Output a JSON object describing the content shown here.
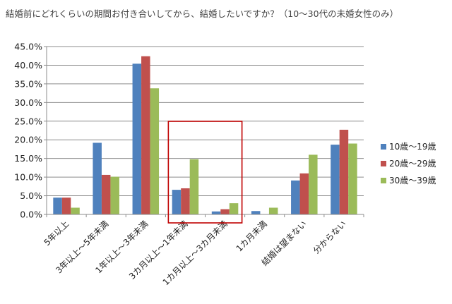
{
  "chart_data": {
    "type": "bar",
    "title": "結婚前にどれくらいの期間お付き合いしてから、結婚したいですか？（10～30代の未婚女性のみ）",
    "categories": [
      "5年以上",
      "3年以上～5年未満",
      "1年以上～3年未満",
      "3カ月以上～1年未満",
      "1カ月以上～3カ月未満",
      "1カ月未満",
      "結婚は望まない",
      "分からない"
    ],
    "series": [
      {
        "name": "10歳～19歳",
        "color": "#4f81bd",
        "values": [
          4.5,
          19.2,
          40.4,
          6.6,
          0.8,
          0.9,
          9.1,
          18.7
        ]
      },
      {
        "name": "20歳～29歳",
        "color": "#c0504d",
        "values": [
          4.5,
          10.6,
          42.4,
          7.0,
          1.4,
          0.0,
          11.0,
          22.7
        ]
      },
      {
        "name": "30歳～39歳",
        "color": "#9bbb59",
        "values": [
          1.8,
          10.1,
          33.8,
          14.8,
          3.0,
          1.8,
          16.0,
          19.0
        ]
      }
    ],
    "yticks": [
      "0.0%",
      "5.0%",
      "10.0%",
      "15.0%",
      "20.0%",
      "25.0%",
      "30.0%",
      "35.0%",
      "40.0%",
      "45.0%"
    ],
    "ylim": [
      0,
      45
    ],
    "grid": true,
    "legend_position": "right",
    "highlight_box_categories": [
      3,
      4
    ],
    "highlight_color": "#c00000"
  }
}
